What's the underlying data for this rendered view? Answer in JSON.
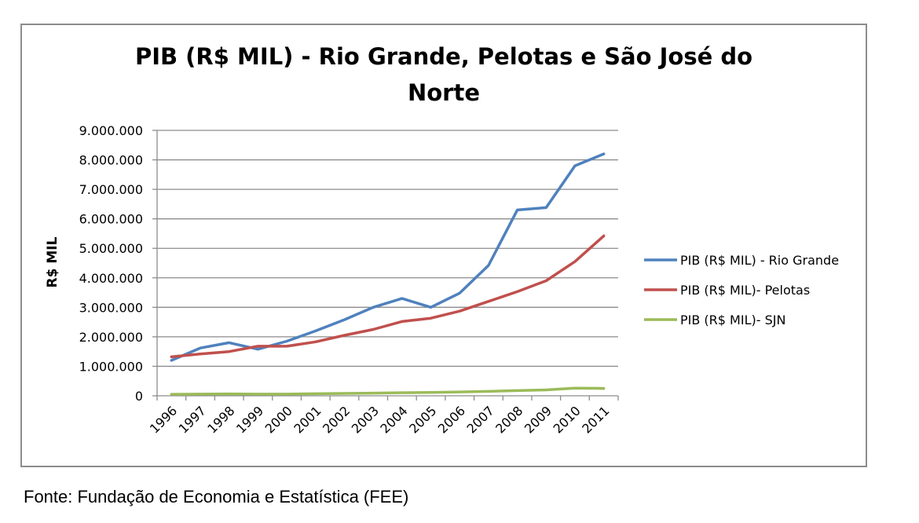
{
  "chart_data": {
    "type": "line",
    "title_line1": "PIB (R$ MIL) - Rio Grande, Pelotas e São José do",
    "title_line2": "Norte",
    "xlabel": "",
    "ylabel": "R$ MIL",
    "ylim": [
      0,
      9000000
    ],
    "yticks": [
      0,
      1000000,
      2000000,
      3000000,
      4000000,
      5000000,
      6000000,
      7000000,
      8000000,
      9000000
    ],
    "ytick_labels": [
      "0",
      "1.000.000",
      "2.000.000",
      "3.000.000",
      "4.000.000",
      "5.000.000",
      "6.000.000",
      "7.000.000",
      "8.000.000",
      "9.000.000"
    ],
    "grid": true,
    "legend_position": "right",
    "categories": [
      "1996",
      "1997",
      "1998",
      "1999",
      "2000",
      "2001",
      "2002",
      "2003",
      "2004",
      "2005",
      "2006",
      "2007",
      "2008",
      "2009",
      "2010",
      "2011"
    ],
    "series": [
      {
        "name": "PIB (R$ MIL) - Rio Grande",
        "color": "#4f81bd",
        "values": [
          1200000,
          1620000,
          1800000,
          1580000,
          1850000,
          2200000,
          2580000,
          3000000,
          3300000,
          3000000,
          3480000,
          4420000,
          6300000,
          6380000,
          7800000,
          8200000
        ]
      },
      {
        "name": "PIB (R$ MIL)- Pelotas",
        "color": "#c0504d",
        "values": [
          1320000,
          1420000,
          1500000,
          1680000,
          1680000,
          1830000,
          2050000,
          2250000,
          2520000,
          2630000,
          2870000,
          3200000,
          3530000,
          3900000,
          4550000,
          5420000
        ]
      },
      {
        "name": "PIB (R$ MIL)- SJN",
        "color": "#9bbb59",
        "values": [
          50000,
          55000,
          65000,
          55000,
          55000,
          70000,
          80000,
          90000,
          105000,
          115000,
          130000,
          150000,
          175000,
          200000,
          260000,
          250000
        ]
      }
    ]
  },
  "source_note": "Fonte: Fundação de Economia e Estatística (FEE)"
}
